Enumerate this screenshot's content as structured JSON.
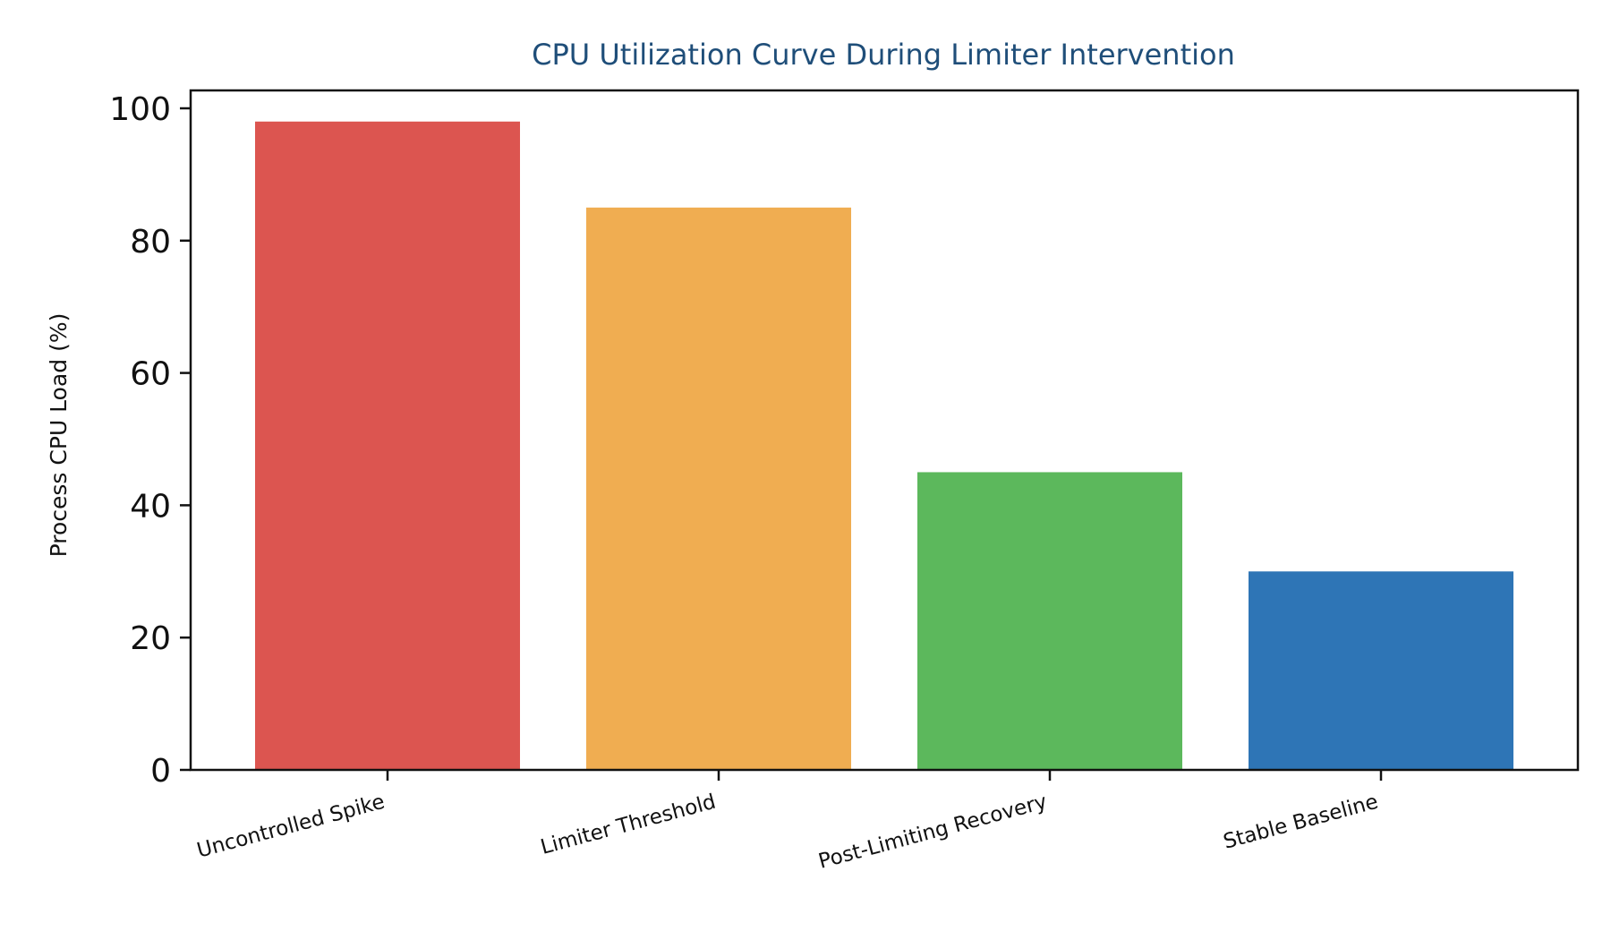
{
  "chart_data": {
    "type": "bar",
    "title": "CPU Utilization Curve During Limiter Intervention",
    "xlabel": "",
    "ylabel": "Process CPU Load (%)",
    "categories": [
      "Uncontrolled Spike",
      "Limiter Threshold",
      "Post-Limiting Recovery",
      "Stable Baseline"
    ],
    "values": [
      98,
      85,
      45,
      30
    ],
    "colors": [
      "#dc5550",
      "#f0ad51",
      "#5cb85c",
      "#2e75b6"
    ],
    "ylim": [
      0,
      100
    ],
    "yticks": [
      "0",
      "20",
      "40",
      "60",
      "80",
      "100"
    ],
    "grid": false,
    "legend": "none"
  },
  "colors": {
    "title": "#1f4e79",
    "axis": "#111111"
  }
}
